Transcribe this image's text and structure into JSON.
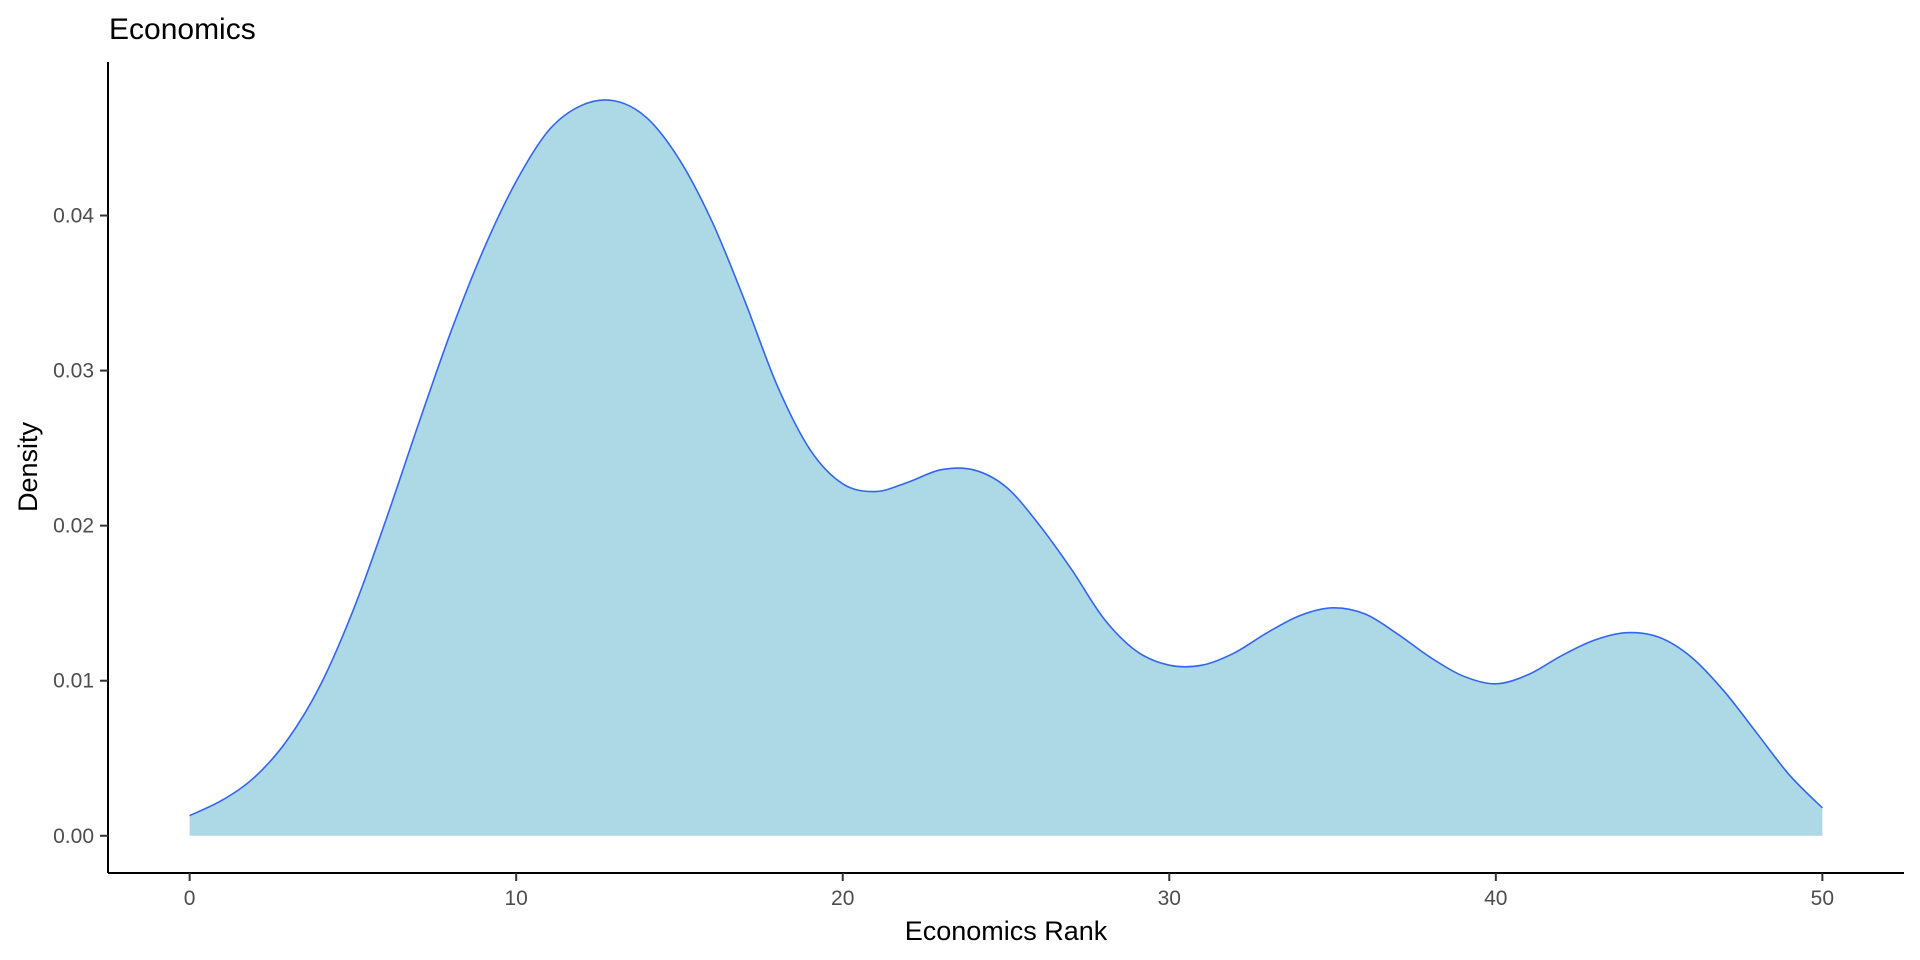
{
  "chart_data": {
    "type": "area",
    "title": "Economics",
    "xlabel": "Economics Rank",
    "ylabel": "Density",
    "xlim": [
      -2.5,
      52.5
    ],
    "ylim": [
      -0.0024,
      0.0499
    ],
    "xticks": [
      0,
      10,
      20,
      30,
      40,
      50
    ],
    "xtick_labels": [
      "0",
      "10",
      "20",
      "30",
      "40",
      "50"
    ],
    "yticks": [
      0,
      0.01,
      0.02,
      0.03,
      0.04
    ],
    "ytick_labels": [
      "0.00",
      "0.01",
      "0.02",
      "0.03",
      "0.04"
    ],
    "grid": false,
    "legend": "none",
    "fill_color": "#ADD8E6",
    "line_color": "#3366EE",
    "series": [
      {
        "x": [
          0,
          1,
          2,
          3,
          4,
          5,
          6,
          7,
          8,
          9,
          10,
          11,
          12,
          13,
          14,
          15,
          16,
          17,
          18,
          19,
          20,
          21,
          22,
          23,
          24,
          25,
          26,
          27,
          28,
          29,
          30,
          31,
          32,
          33,
          34,
          35,
          36,
          37,
          38,
          39,
          40,
          41,
          42,
          43,
          44,
          45,
          46,
          47,
          48,
          49,
          50
        ],
        "y": [
          0.0013,
          0.0023,
          0.0038,
          0.0062,
          0.0097,
          0.0145,
          0.0203,
          0.0265,
          0.0325,
          0.0378,
          0.0422,
          0.0455,
          0.0471,
          0.0474,
          0.0463,
          0.0436,
          0.0396,
          0.0345,
          0.029,
          0.0249,
          0.0227,
          0.0222,
          0.0228,
          0.0236,
          0.0236,
          0.0225,
          0.0201,
          0.0172,
          0.014,
          0.0119,
          0.011,
          0.011,
          0.0118,
          0.0131,
          0.0142,
          0.0147,
          0.0143,
          0.013,
          0.0115,
          0.0103,
          0.0098,
          0.0104,
          0.0116,
          0.0126,
          0.0131,
          0.0128,
          0.0115,
          0.0093,
          0.0066,
          0.0039,
          0.0018
        ]
      }
    ]
  }
}
